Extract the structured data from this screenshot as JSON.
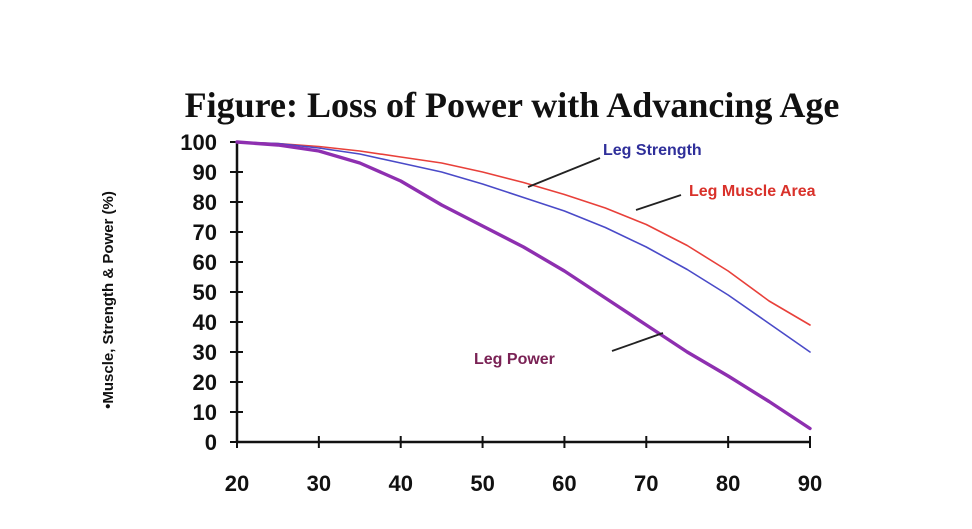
{
  "chart_data": {
    "type": "line",
    "title": "Figure:  Loss of Power with Advancing Age",
    "xlabel": "",
    "ylabel": "•Muscle, Strength & Power (%)",
    "xlim": [
      20,
      90
    ],
    "ylim": [
      0,
      100
    ],
    "xticks": [
      20,
      30,
      40,
      50,
      60,
      70,
      80,
      90
    ],
    "yticks": [
      0,
      10,
      20,
      30,
      40,
      50,
      60,
      70,
      80,
      90,
      100
    ],
    "grid": false,
    "legend": "none",
    "series": [
      {
        "name": "Leg Muscle Area",
        "color": "#e8403a",
        "x": [
          20,
          25,
          30,
          35,
          40,
          45,
          50,
          55,
          60,
          65,
          70,
          75,
          80,
          85,
          90
        ],
        "y": [
          100,
          99.5,
          98.5,
          97,
          95,
          93,
          90,
          86.5,
          82.5,
          78,
          72.5,
          65.5,
          57,
          47,
          39
        ]
      },
      {
        "name": "Leg Strength",
        "color": "#4a4ac8",
        "x": [
          20,
          25,
          30,
          35,
          40,
          45,
          50,
          55,
          60,
          65,
          70,
          75,
          80,
          85,
          90
        ],
        "y": [
          100,
          99.5,
          98,
          96,
          93,
          90,
          86,
          81.5,
          77,
          71.5,
          65,
          57.5,
          49,
          39.5,
          30
        ]
      },
      {
        "name": "Leg Power",
        "color": "#8e2fb0",
        "x": [
          20,
          25,
          30,
          35,
          40,
          45,
          50,
          55,
          60,
          65,
          70,
          75,
          80,
          85,
          90
        ],
        "y": [
          100,
          99,
          97,
          93,
          87,
          79,
          72,
          65,
          57,
          48,
          39,
          30,
          22,
          13.5,
          4.5
        ]
      }
    ],
    "annotations": [
      {
        "text": "Leg Strength",
        "color": "#2f2f9a"
      },
      {
        "text": "Leg Muscle Area",
        "color": "#d9312a"
      },
      {
        "text": "Leg Power",
        "color": "#7a2255"
      }
    ]
  }
}
